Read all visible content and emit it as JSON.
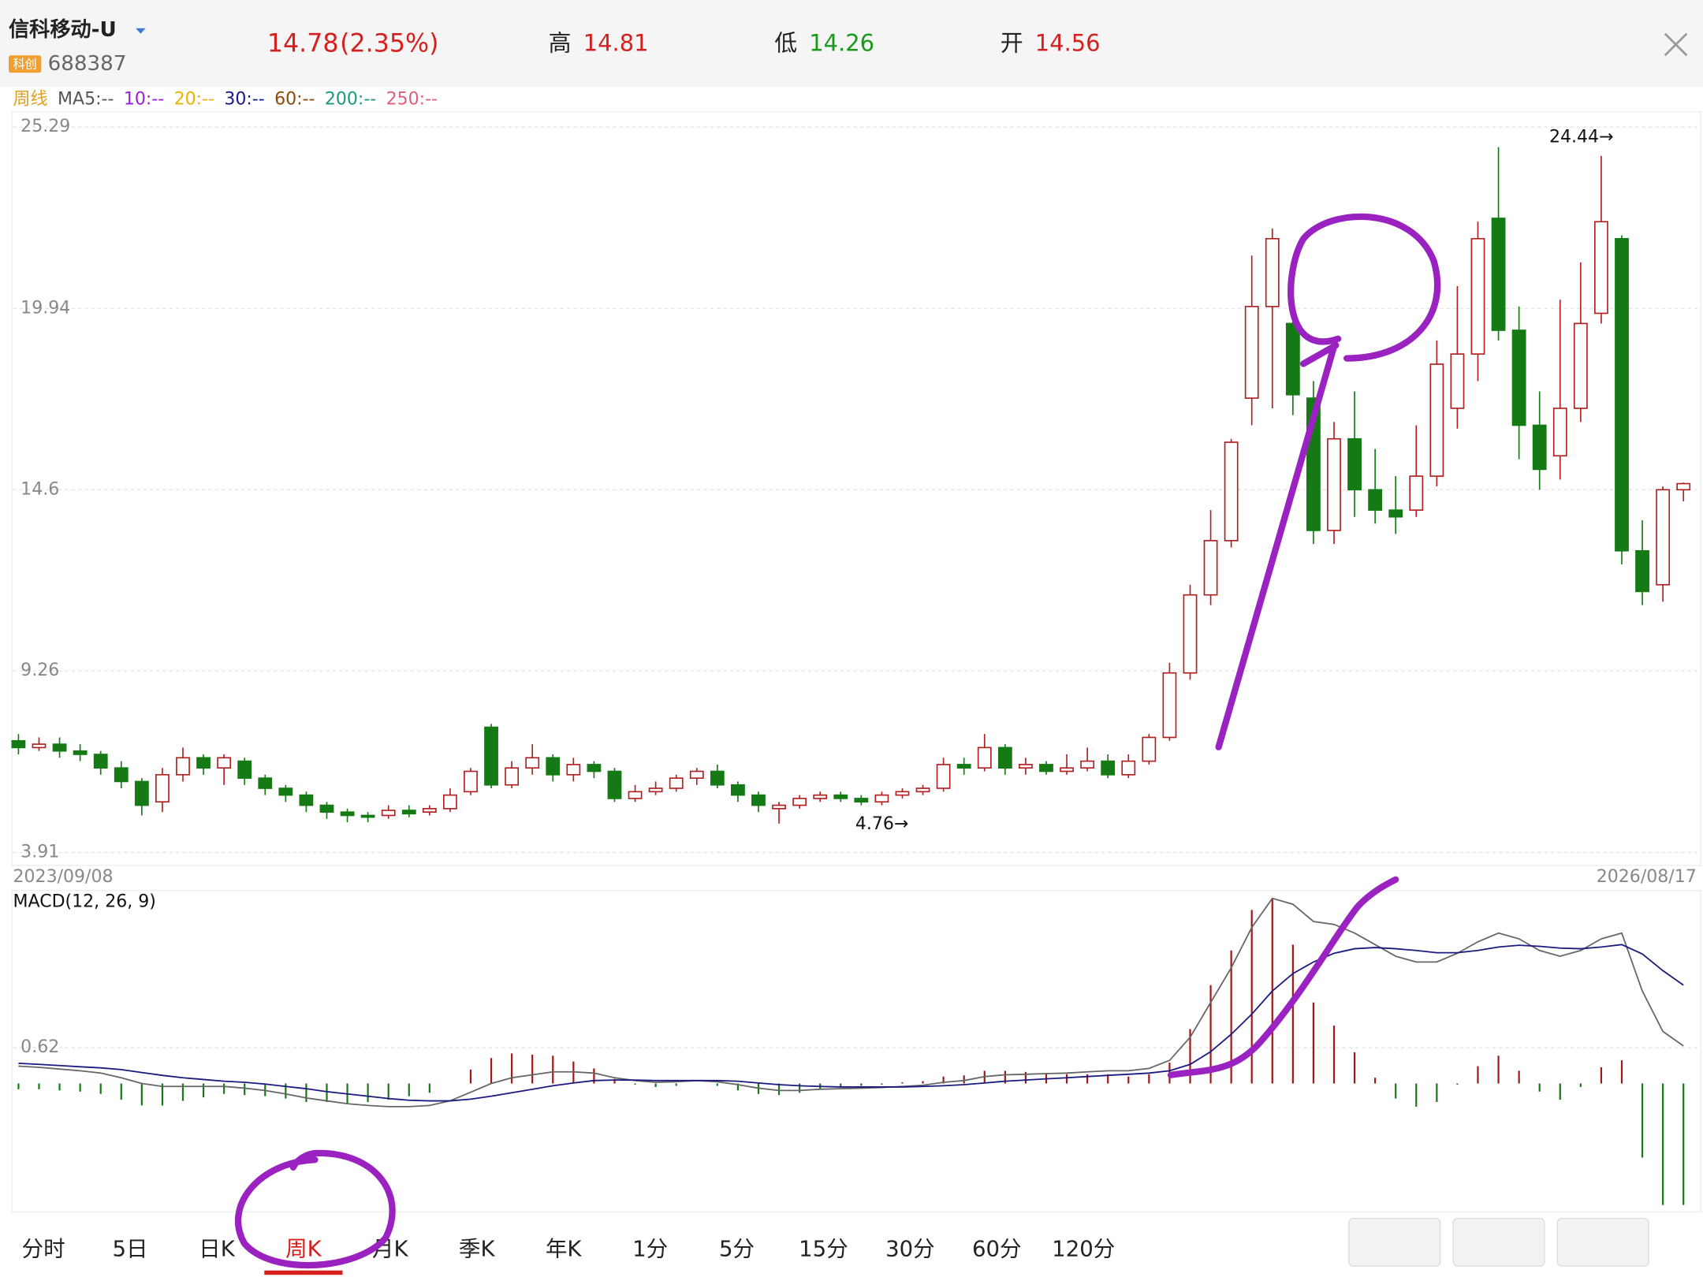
{
  "header": {
    "name": "信科移动-U",
    "board": "科创",
    "code": "688387",
    "price": 14.78,
    "change": "(2.35%)",
    "stats": [
      {
        "label": "高",
        "value": 14.81,
        "color": "#d62020"
      },
      {
        "label": "低",
        "value": 14.26,
        "color": "#1a9a1a"
      },
      {
        "label": "开",
        "value": 14.56,
        "color": "#d62020"
      }
    ]
  },
  "ma_legend": [
    {
      "text": "周线",
      "color": "#e0a020"
    },
    {
      "text": "MA5:--",
      "color": "#555555"
    },
    {
      "text": "10:--",
      "color": "#9b1fd6"
    },
    {
      "text": "20:--",
      "color": "#e8b400"
    },
    {
      "text": "30:--",
      "color": "#1a1a8a"
    },
    {
      "text": "60:--",
      "color": "#8a4a10"
    },
    {
      "text": "200:--",
      "color": "#1a9a7a"
    },
    {
      "text": "250:--",
      "color": "#e0607a"
    }
  ],
  "chart_data": [
    {
      "type": "candlestick",
      "up_color": "#b02020",
      "down_color": "#157a15",
      "ylim": [
        3.91,
        25.29
      ],
      "yticks": [
        3.91,
        9.26,
        14.6,
        19.94,
        25.29
      ],
      "grid": true,
      "date_range": [
        "2023/09/08",
        "2026/08/17"
      ],
      "annotations": [
        {
          "value": 24.44,
          "label": "24.44→"
        },
        {
          "value": 4.76,
          "label": "4.76→"
        }
      ],
      "candles": [
        [
          7.2,
          7.0,
          7.4,
          6.8
        ],
        [
          7.0,
          7.1,
          7.3,
          6.9
        ],
        [
          7.1,
          6.9,
          7.3,
          6.7
        ],
        [
          6.9,
          6.8,
          7.1,
          6.6
        ],
        [
          6.8,
          6.4,
          6.9,
          6.2
        ],
        [
          6.4,
          6.0,
          6.6,
          5.8
        ],
        [
          6.0,
          5.3,
          6.1,
          5.0
        ],
        [
          5.4,
          6.2,
          6.4,
          5.1
        ],
        [
          6.2,
          6.7,
          7.0,
          6.0
        ],
        [
          6.7,
          6.4,
          6.8,
          6.2
        ],
        [
          6.4,
          6.7,
          6.8,
          5.9
        ],
        [
          6.6,
          6.1,
          6.7,
          5.9
        ],
        [
          6.1,
          5.8,
          6.2,
          5.6
        ],
        [
          5.8,
          5.6,
          5.9,
          5.4
        ],
        [
          5.6,
          5.3,
          5.7,
          5.1
        ],
        [
          5.3,
          5.1,
          5.4,
          4.9
        ],
        [
          5.1,
          5.0,
          5.2,
          4.8
        ],
        [
          5.0,
          4.95,
          5.1,
          4.8
        ],
        [
          5.0,
          5.15,
          5.3,
          4.9
        ],
        [
          5.15,
          5.05,
          5.3,
          4.95
        ],
        [
          5.1,
          5.2,
          5.3,
          5.0
        ],
        [
          5.2,
          5.6,
          5.8,
          5.1
        ],
        [
          5.7,
          6.3,
          6.4,
          5.6
        ],
        [
          7.6,
          5.9,
          7.7,
          5.8
        ],
        [
          5.9,
          6.4,
          6.6,
          5.8
        ],
        [
          6.4,
          6.7,
          7.1,
          6.2
        ],
        [
          6.7,
          6.2,
          6.8,
          6.0
        ],
        [
          6.2,
          6.5,
          6.7,
          6.0
        ],
        [
          6.5,
          6.3,
          6.6,
          6.1
        ],
        [
          6.3,
          5.5,
          6.4,
          5.4
        ],
        [
          5.5,
          5.7,
          5.9,
          5.4
        ],
        [
          5.7,
          5.8,
          6.0,
          5.6
        ],
        [
          5.8,
          6.1,
          6.2,
          5.7
        ],
        [
          6.1,
          6.3,
          6.4,
          5.9
        ],
        [
          6.3,
          5.9,
          6.5,
          5.8
        ],
        [
          5.9,
          5.6,
          6.0,
          5.4
        ],
        [
          5.6,
          5.3,
          5.7,
          5.1
        ],
        [
          5.2,
          5.3,
          5.4,
          4.76
        ],
        [
          5.3,
          5.5,
          5.6,
          5.2
        ],
        [
          5.5,
          5.6,
          5.7,
          5.4
        ],
        [
          5.6,
          5.5,
          5.7,
          5.4
        ],
        [
          5.5,
          5.4,
          5.6,
          5.3
        ],
        [
          5.4,
          5.6,
          5.7,
          5.3
        ],
        [
          5.6,
          5.7,
          5.8,
          5.5
        ],
        [
          5.7,
          5.8,
          5.9,
          5.6
        ],
        [
          5.8,
          6.5,
          6.7,
          5.7
        ],
        [
          6.5,
          6.4,
          6.7,
          6.2
        ],
        [
          6.4,
          7.0,
          7.4,
          6.3
        ],
        [
          7.0,
          6.4,
          7.1,
          6.2
        ],
        [
          6.4,
          6.5,
          6.7,
          6.2
        ],
        [
          6.5,
          6.3,
          6.6,
          6.2
        ],
        [
          6.3,
          6.4,
          6.8,
          6.2
        ],
        [
          6.4,
          6.6,
          7.0,
          6.3
        ],
        [
          6.6,
          6.2,
          6.8,
          6.1
        ],
        [
          6.2,
          6.6,
          6.8,
          6.1
        ],
        [
          6.6,
          7.3,
          7.4,
          6.5
        ],
        [
          7.3,
          9.2,
          9.5,
          7.2
        ],
        [
          9.2,
          11.5,
          11.8,
          9.0
        ],
        [
          11.5,
          13.1,
          14.0,
          11.2
        ],
        [
          13.1,
          16.0,
          16.1,
          12.9
        ],
        [
          17.3,
          20.0,
          21.5,
          16.5
        ],
        [
          20.0,
          22.0,
          22.3,
          17.0
        ],
        [
          19.5,
          17.4,
          20.5,
          16.8
        ],
        [
          17.3,
          13.4,
          17.8,
          13.0
        ],
        [
          13.4,
          16.1,
          16.6,
          13.0
        ],
        [
          16.1,
          14.6,
          17.5,
          13.8
        ],
        [
          14.6,
          14.0,
          15.8,
          13.6
        ],
        [
          14.0,
          13.8,
          15.0,
          13.3
        ],
        [
          14.0,
          15.0,
          16.5,
          13.8
        ],
        [
          15.0,
          18.3,
          19.0,
          14.7
        ],
        [
          17.0,
          18.6,
          20.6,
          16.4
        ],
        [
          18.6,
          22.0,
          22.5,
          17.8
        ],
        [
          22.6,
          19.3,
          24.7,
          19.0
        ],
        [
          19.3,
          16.5,
          20.0,
          15.5
        ],
        [
          16.5,
          15.2,
          17.5,
          14.6
        ],
        [
          15.6,
          17.0,
          20.2,
          14.9
        ],
        [
          17.0,
          19.5,
          21.3,
          16.6
        ],
        [
          19.8,
          22.5,
          24.44,
          19.5
        ],
        [
          22.0,
          12.8,
          22.1,
          12.4
        ],
        [
          12.8,
          11.6,
          13.7,
          11.2
        ],
        [
          11.8,
          14.6,
          14.7,
          11.3
        ],
        [
          14.6,
          14.78,
          14.81,
          14.26
        ]
      ]
    },
    {
      "type": "macd",
      "title": "MACD(12, 26, 9)",
      "ylim": [
        -2.2,
        3.3
      ],
      "yticks": [
        0.62
      ],
      "up_color": "#a01818",
      "down_color": "#157a15",
      "series": [
        {
          "color": "#666666",
          "values": [
            0.3,
            0.28,
            0.25,
            0.22,
            0.18,
            0.1,
            0.0,
            -0.05,
            -0.05,
            -0.05,
            -0.05,
            -0.08,
            -0.12,
            -0.18,
            -0.25,
            -0.3,
            -0.35,
            -0.38,
            -0.4,
            -0.4,
            -0.38,
            -0.3,
            -0.15,
            0.0,
            0.1,
            0.15,
            0.2,
            0.2,
            0.18,
            0.1,
            0.05,
            0.02,
            0.03,
            0.05,
            0.03,
            -0.02,
            -0.08,
            -0.12,
            -0.12,
            -0.1,
            -0.09,
            -0.08,
            -0.07,
            -0.05,
            -0.03,
            0.02,
            0.05,
            0.12,
            0.15,
            0.16,
            0.17,
            0.18,
            0.2,
            0.22,
            0.22,
            0.26,
            0.4,
            0.8,
            1.4,
            2.0,
            2.7,
            3.2,
            3.1,
            2.8,
            2.75,
            2.6,
            2.4,
            2.2,
            2.1,
            2.1,
            2.25,
            2.45,
            2.6,
            2.5,
            2.3,
            2.2,
            2.3,
            2.5,
            2.6,
            1.6,
            0.9,
            0.65
          ]
        },
        {
          "color": "#1a1a80",
          "values": [
            0.35,
            0.33,
            0.31,
            0.29,
            0.27,
            0.24,
            0.19,
            0.14,
            0.1,
            0.07,
            0.04,
            0.02,
            -0.01,
            -0.05,
            -0.09,
            -0.14,
            -0.18,
            -0.22,
            -0.26,
            -0.29,
            -0.3,
            -0.3,
            -0.27,
            -0.22,
            -0.16,
            -0.1,
            -0.04,
            0.01,
            0.05,
            0.06,
            0.06,
            0.05,
            0.05,
            0.05,
            0.05,
            0.04,
            0.01,
            -0.02,
            -0.04,
            -0.05,
            -0.06,
            -0.06,
            -0.06,
            -0.06,
            -0.05,
            -0.04,
            -0.02,
            0.01,
            0.04,
            0.06,
            0.08,
            0.1,
            0.12,
            0.14,
            0.16,
            0.18,
            0.22,
            0.33,
            0.55,
            0.85,
            1.2,
            1.6,
            1.9,
            2.1,
            2.25,
            2.33,
            2.35,
            2.33,
            2.3,
            2.26,
            2.26,
            2.3,
            2.36,
            2.39,
            2.37,
            2.34,
            2.33,
            2.36,
            2.4,
            2.24,
            1.95,
            1.7
          ]
        }
      ],
      "histogram": [
        -0.1,
        -0.1,
        -0.12,
        -0.14,
        -0.18,
        -0.28,
        -0.38,
        -0.38,
        -0.3,
        -0.24,
        -0.18,
        -0.2,
        -0.22,
        -0.26,
        -0.32,
        -0.32,
        -0.34,
        -0.32,
        -0.28,
        -0.22,
        -0.16,
        0.0,
        0.24,
        0.44,
        0.52,
        0.5,
        0.48,
        0.38,
        0.26,
        0.08,
        -0.02,
        -0.06,
        -0.04,
        0.0,
        -0.04,
        -0.12,
        -0.18,
        -0.2,
        -0.16,
        -0.1,
        -0.06,
        -0.04,
        -0.02,
        0.02,
        0.04,
        0.12,
        0.14,
        0.22,
        0.22,
        0.2,
        0.18,
        0.16,
        0.16,
        0.16,
        0.12,
        0.16,
        0.36,
        0.94,
        1.7,
        2.3,
        3.0,
        3.2,
        2.4,
        1.4,
        1.0,
        0.54,
        0.1,
        -0.26,
        -0.4,
        -0.32,
        -0.02,
        0.3,
        0.48,
        0.22,
        -0.14,
        -0.28,
        -0.06,
        0.28,
        0.4,
        -1.28,
        -2.1,
        -2.1
      ]
    }
  ],
  "tabs": [
    "分时",
    "5日",
    "日K",
    "周K",
    "月K",
    "季K",
    "年K",
    "1分",
    "5分",
    "15分",
    "30分",
    "60分",
    "120分"
  ]
}
